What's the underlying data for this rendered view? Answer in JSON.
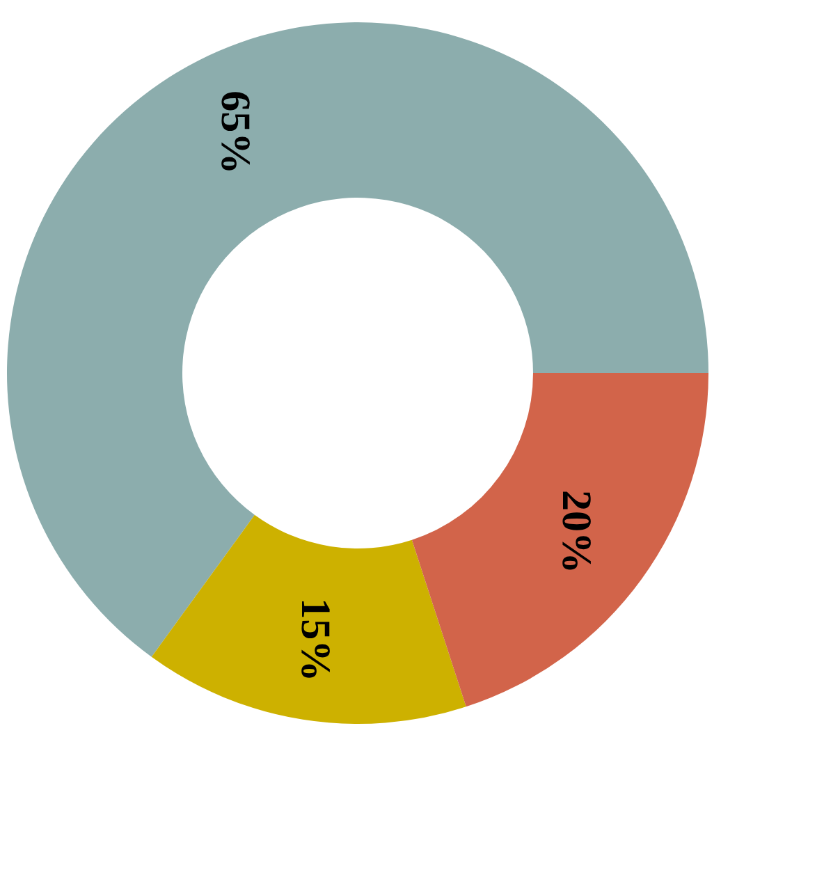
{
  "chart_data": {
    "type": "donut",
    "categories": [
      null,
      null,
      null
    ],
    "values": [
      65,
      15,
      20
    ],
    "colors": [
      "#8cadad",
      "#cdb100",
      "#d2644a"
    ],
    "value_labels": [
      "65%",
      "15%",
      "20%"
    ]
  }
}
